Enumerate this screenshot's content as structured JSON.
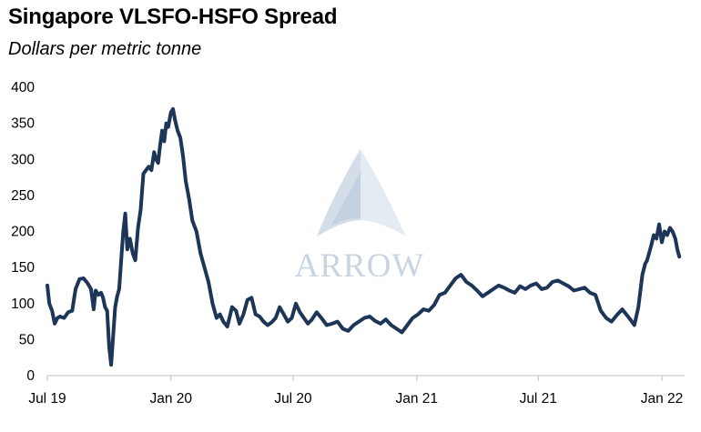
{
  "chart_data": {
    "type": "line",
    "title": "Singapore VLSFO-HSFO Spread",
    "subtitle": "Dollars per metric tonne",
    "xlabel": "",
    "ylabel": "",
    "ylim": [
      0,
      400
    ],
    "yticks": [
      "0",
      "50",
      "100",
      "150",
      "200",
      "250",
      "300",
      "350",
      "400"
    ],
    "xticks": [
      "Jul 19",
      "Jan 20",
      "Jul 20",
      "Jan 21",
      "Jul 21",
      "Jan 22"
    ],
    "grid": false,
    "line_color": "#1d3557",
    "watermark": "ARROW",
    "series": [
      {
        "x": [
          "2019-07-01",
          "2019-07-04",
          "2019-07-08",
          "2019-07-12",
          "2019-07-16",
          "2019-07-20",
          "2019-07-26",
          "2019-08-01",
          "2019-08-07",
          "2019-08-12",
          "2019-08-18",
          "2019-08-24",
          "2019-08-30",
          "2019-09-04",
          "2019-09-08",
          "2019-09-11",
          "2019-09-15",
          "2019-09-19",
          "2019-09-22",
          "2019-09-25",
          "2019-09-28",
          "2019-10-01",
          "2019-10-04",
          "2019-10-07",
          "2019-10-10",
          "2019-10-13",
          "2019-10-16",
          "2019-10-19",
          "2019-10-22",
          "2019-10-25",
          "2019-10-28",
          "2019-11-01",
          "2019-11-05",
          "2019-11-09",
          "2019-11-13",
          "2019-11-17",
          "2019-11-21",
          "2019-11-25",
          "2019-11-29",
          "2019-12-03",
          "2019-12-07",
          "2019-12-10",
          "2019-12-13",
          "2019-12-16",
          "2019-12-19",
          "2019-12-22",
          "2019-12-25",
          "2019-12-28",
          "2020-01-01",
          "2020-01-04",
          "2020-01-07",
          "2020-01-11",
          "2020-01-15",
          "2020-01-19",
          "2020-01-23",
          "2020-01-28",
          "2020-02-02",
          "2020-02-08",
          "2020-02-14",
          "2020-02-20",
          "2020-02-26",
          "2020-03-03",
          "2020-03-09",
          "2020-03-14",
          "2020-03-19",
          "2020-03-25",
          "2020-04-01",
          "2020-04-07",
          "2020-04-12",
          "2020-04-18",
          "2020-04-24",
          "2020-04-30",
          "2020-05-06",
          "2020-05-12",
          "2020-05-18",
          "2020-05-24",
          "2020-05-30",
          "2020-06-05",
          "2020-06-11",
          "2020-06-17",
          "2020-06-23",
          "2020-06-29",
          "2020-07-05",
          "2020-07-11",
          "2020-07-17",
          "2020-07-23",
          "2020-07-29",
          "2020-08-05",
          "2020-08-12",
          "2020-08-20",
          "2020-08-28",
          "2020-09-05",
          "2020-09-13",
          "2020-09-21",
          "2020-09-29",
          "2020-10-07",
          "2020-10-15",
          "2020-10-23",
          "2020-10-31",
          "2020-11-08",
          "2020-11-16",
          "2020-11-24",
          "2020-12-02",
          "2020-12-10",
          "2020-12-18",
          "2020-12-26",
          "2021-01-03",
          "2021-01-11",
          "2021-01-19",
          "2021-01-27",
          "2021-02-04",
          "2021-02-12",
          "2021-02-20",
          "2021-02-28",
          "2021-03-08",
          "2021-03-16",
          "2021-03-24",
          "2021-04-01",
          "2021-04-09",
          "2021-04-17",
          "2021-04-25",
          "2021-05-03",
          "2021-05-11",
          "2021-05-19",
          "2021-05-27",
          "2021-06-04",
          "2021-06-12",
          "2021-06-20",
          "2021-06-28",
          "2021-07-06",
          "2021-07-14",
          "2021-07-22",
          "2021-07-30",
          "2021-08-07",
          "2021-08-15",
          "2021-08-23",
          "2021-08-31",
          "2021-09-08",
          "2021-09-16",
          "2021-09-24",
          "2021-10-02",
          "2021-10-10",
          "2021-10-18",
          "2021-10-26",
          "2021-11-03",
          "2021-11-09",
          "2021-11-15",
          "2021-11-21",
          "2021-11-27",
          "2021-12-03",
          "2021-12-07",
          "2021-12-10",
          "2021-12-13",
          "2021-12-16",
          "2021-12-20",
          "2021-12-24",
          "2021-12-28",
          "2022-01-01",
          "2022-01-05",
          "2022-01-09",
          "2022-01-13",
          "2022-01-17",
          "2022-01-21",
          "2022-01-24",
          "2022-01-27"
        ],
        "values": [
          125,
          100,
          90,
          72,
          80,
          82,
          80,
          88,
          90,
          120,
          134,
          135,
          128,
          120,
          92,
          118,
          112,
          115,
          108,
          95,
          90,
          40,
          15,
          55,
          95,
          110,
          120,
          160,
          200,
          225,
          175,
          190,
          170,
          160,
          205,
          230,
          280,
          285,
          290,
          285,
          310,
          300,
          295,
          320,
          340,
          325,
          350,
          345,
          365,
          370,
          355,
          340,
          330,
          305,
          270,
          245,
          215,
          200,
          170,
          150,
          130,
          100,
          80,
          85,
          75,
          68,
          95,
          90,
          72,
          85,
          105,
          108,
          85,
          82,
          75,
          70,
          74,
          80,
          95,
          85,
          75,
          80,
          100,
          88,
          80,
          72,
          78,
          88,
          80,
          70,
          72,
          75,
          65,
          62,
          70,
          75,
          80,
          82,
          76,
          72,
          78,
          70,
          65,
          60,
          70,
          80,
          85,
          92,
          90,
          98,
          112,
          115,
          125,
          135,
          140,
          130,
          125,
          118,
          110,
          115,
          120,
          125,
          122,
          118,
          115,
          124,
          120,
          125,
          128,
          120,
          122,
          130,
          132,
          128,
          124,
          118,
          120,
          122,
          115,
          112,
          90,
          80,
          75,
          84,
          92,
          85,
          78,
          70,
          95,
          140,
          155,
          160,
          170,
          180,
          195,
          190,
          210,
          185,
          200,
          195,
          205,
          200,
          190,
          175,
          165
        ]
      }
    ]
  }
}
